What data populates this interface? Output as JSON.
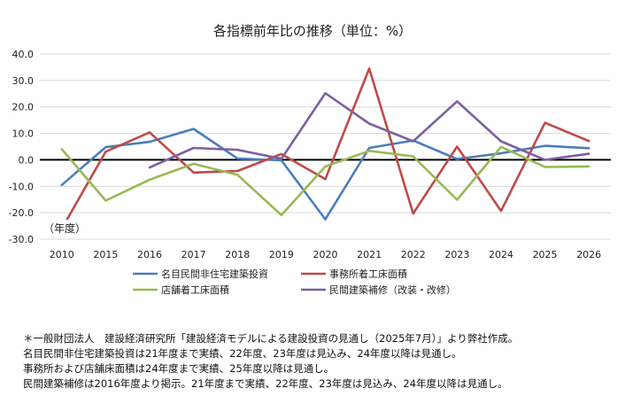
{
  "chart_data": {
    "type": "line",
    "title": "各指標前年比の推移（単位：%）",
    "xlabel": "（年度）",
    "ylabel": "",
    "ylim": [
      -30,
      40
    ],
    "yticks": [
      40.0,
      30.0,
      20.0,
      10.0,
      0.0,
      -10.0,
      -20.0,
      -30.0
    ],
    "ytick_labels": [
      "40.0",
      "30.0",
      "20.0",
      "10.0",
      "0.0",
      "-10.0",
      "-20.0",
      "-30.0"
    ],
    "x_tick_labels": [
      "2010",
      "2015",
      "2016",
      "2017",
      "2018",
      "2019",
      "2020",
      "2021",
      "2022",
      "2023",
      "2024",
      "2025",
      "2026"
    ],
    "grid": "horizontal",
    "legend_position": "bottom",
    "series": [
      {
        "name": "名目民間非住宅建築投資",
        "color": "#4a7ebb",
        "values": [
          -9.5,
          4.8,
          6.8,
          11.7,
          0.5,
          -0.2,
          -22.5,
          4.5,
          7.3,
          0.3,
          2.5,
          5.3,
          4.4
        ]
      },
      {
        "name": "事務所着工床面積",
        "color": "#be4b48",
        "values": [
          -26.0,
          3.1,
          10.4,
          -4.8,
          -4.2,
          2.2,
          -7.3,
          34.5,
          -20.3,
          5.0,
          -19.3,
          14.0,
          7.1
        ]
      },
      {
        "name": "店舗着工床面積",
        "color": "#98b954",
        "values": [
          4.0,
          -15.4,
          -7.5,
          -1.5,
          -5.7,
          -20.9,
          -2.5,
          3.4,
          1.3,
          -15.1,
          4.9,
          -2.7,
          -2.5
        ]
      },
      {
        "name": "民間建築補修（改装・改修）",
        "color": "#7d60a0",
        "values": [
          null,
          null,
          -2.9,
          4.5,
          3.8,
          0.4,
          25.2,
          13.7,
          7.0,
          22.1,
          7.0,
          0.0,
          2.3
        ]
      }
    ]
  },
  "notes": [
    "＊一般財団法人　建設経済研究所「建設経済モデルによる建設投資の見通し（2025年7月）」より弊社作成。",
    "名目民間非住宅建築投資は21年度まで実績、22年度、23年度は見込み、24年度以降は見通し。",
    "事務所および店舗床面積は24年度まで実績、25年度以降は見通し。",
    "民間建築補修は2016年度より掲示。21年度まで実績、22年度、23年度は見込み、24年度以降は見通し。"
  ]
}
